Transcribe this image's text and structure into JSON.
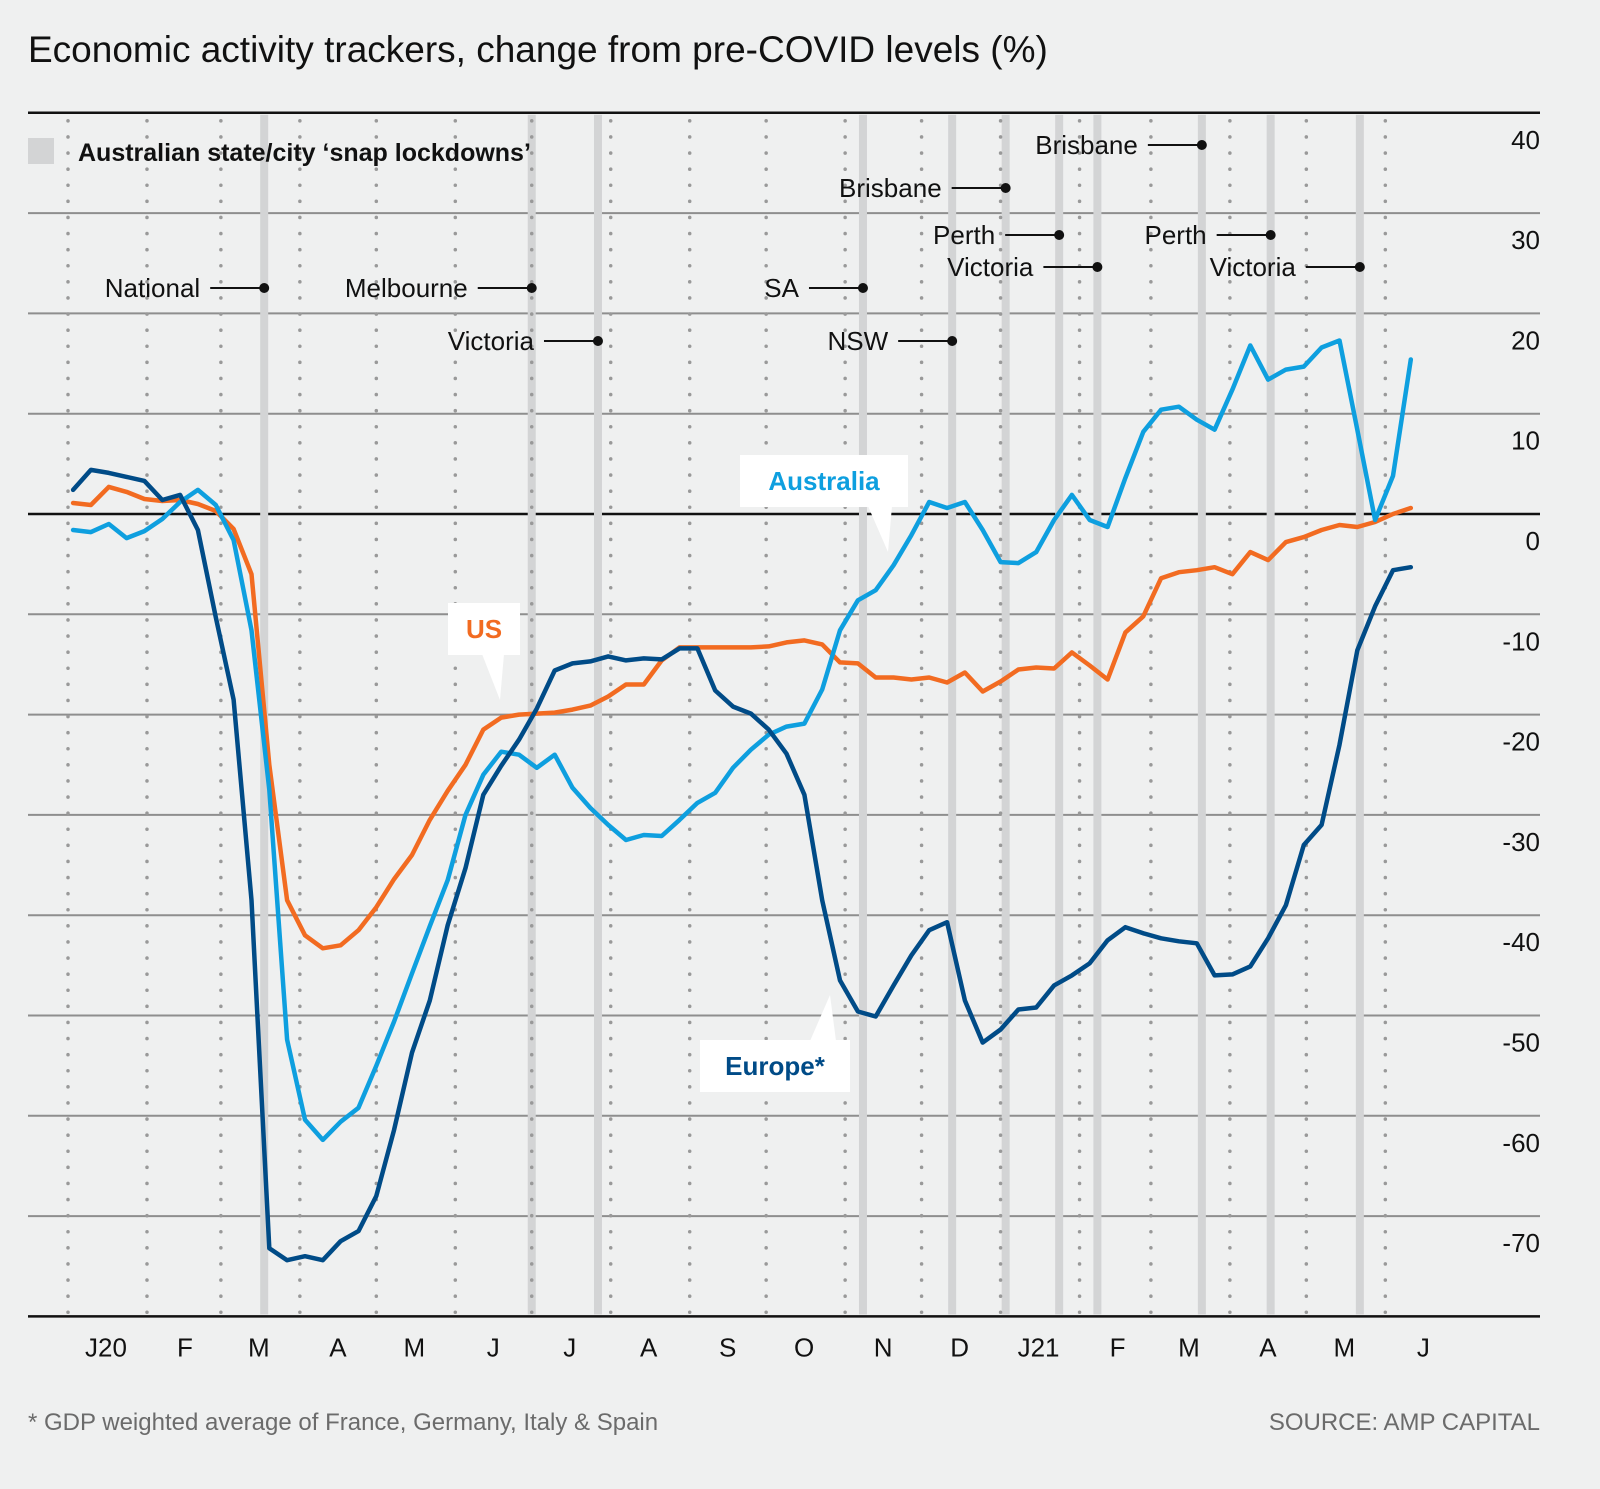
{
  "chart_data": {
    "type": "line",
    "title": "Economic activity trackers, change from pre-COVID levels (%)",
    "legend": {
      "swatch_color": "#d3d4d5",
      "label": "Australian state/city ‘snap lockdowns’",
      "placement": "top-left"
    },
    "ylim": [
      -80,
      40
    ],
    "y_ticks": [
      40,
      30,
      20,
      10,
      0,
      -10,
      -20,
      -30,
      -40,
      -50,
      -60,
      -70
    ],
    "y_axis_side": "right",
    "grid": true,
    "x_ticks": [
      {
        "label": "J20",
        "month": "2020-01"
      },
      {
        "label": "F",
        "month": "2020-02"
      },
      {
        "label": "M",
        "month": "2020-03"
      },
      {
        "label": "A",
        "month": "2020-04"
      },
      {
        "label": "M",
        "month": "2020-05"
      },
      {
        "label": "J",
        "month": "2020-06"
      },
      {
        "label": "J",
        "month": "2020-07"
      },
      {
        "label": "A",
        "month": "2020-08"
      },
      {
        "label": "S",
        "month": "2020-09"
      },
      {
        "label": "O",
        "month": "2020-10"
      },
      {
        "label": "N",
        "month": "2020-11"
      },
      {
        "label": "D",
        "month": "2020-12"
      },
      {
        "label": "J21",
        "month": "2021-01"
      },
      {
        "label": "F",
        "month": "2021-02"
      },
      {
        "label": "M",
        "month": "2021-03"
      },
      {
        "label": "A",
        "month": "2021-04"
      },
      {
        "label": "M",
        "month": "2021-05"
      },
      {
        "label": "J",
        "month": "2021-06"
      }
    ],
    "x": [
      "2020-01-03",
      "2020-01-10",
      "2020-01-17",
      "2020-01-24",
      "2020-01-31",
      "2020-02-07",
      "2020-02-14",
      "2020-02-21",
      "2020-02-28",
      "2020-03-06",
      "2020-03-13",
      "2020-03-20",
      "2020-03-27",
      "2020-04-03",
      "2020-04-10",
      "2020-04-17",
      "2020-04-24",
      "2020-05-01",
      "2020-05-08",
      "2020-05-15",
      "2020-05-22",
      "2020-05-29",
      "2020-06-05",
      "2020-06-12",
      "2020-06-19",
      "2020-06-26",
      "2020-07-03",
      "2020-07-10",
      "2020-07-17",
      "2020-07-24",
      "2020-07-31",
      "2020-08-07",
      "2020-08-14",
      "2020-08-21",
      "2020-08-28",
      "2020-09-04",
      "2020-09-11",
      "2020-09-18",
      "2020-09-25",
      "2020-10-02",
      "2020-10-09",
      "2020-10-16",
      "2020-10-23",
      "2020-10-30",
      "2020-11-06",
      "2020-11-13",
      "2020-11-20",
      "2020-11-27",
      "2020-12-04",
      "2020-12-11",
      "2020-12-18",
      "2020-12-25",
      "2021-01-01",
      "2021-01-08",
      "2021-01-15",
      "2021-01-22",
      "2021-01-29",
      "2021-02-05",
      "2021-02-12",
      "2021-02-19",
      "2021-02-26",
      "2021-03-05",
      "2021-03-12",
      "2021-03-19",
      "2021-03-26",
      "2021-04-02",
      "2021-04-09",
      "2021-04-16",
      "2021-04-23",
      "2021-04-30",
      "2021-05-07",
      "2021-05-14",
      "2021-05-21",
      "2021-05-28",
      "2021-06-04",
      "2021-06-11"
    ],
    "series": [
      {
        "name": "US",
        "color": "#f26b21",
        "values": [
          1.1,
          0.9,
          2.7,
          2.2,
          1.5,
          1.3,
          1.4,
          1.0,
          0.3,
          -1.5,
          -6,
          -25,
          -38.5,
          -42,
          -43.3,
          -43,
          -41.5,
          -39.2,
          -36.4,
          -34,
          -30.5,
          -27.6,
          -25,
          -21.5,
          -20.3,
          -20,
          -19.9,
          -19.8,
          -19.5,
          -19.1,
          -18.2,
          -17,
          -17,
          -14.6,
          -13.3,
          -13.3,
          -13.3,
          -13.3,
          -13.3,
          -13.2,
          -12.8,
          -12.6,
          -13,
          -14.8,
          -14.9,
          -16.3,
          -16.3,
          -16.5,
          -16.3,
          -16.8,
          -15.8,
          -17.7,
          -16.7,
          -15.5,
          -15.3,
          -15.4,
          -13.8,
          -15.1,
          -16.5,
          -11.8,
          -10.2,
          -6.4,
          -5.8,
          -5.6,
          -5.3,
          -6,
          -3.8,
          -4.6,
          -2.8,
          -2.3,
          -1.6,
          -1.1,
          -1.3,
          -0.8,
          0,
          0.6
        ]
      },
      {
        "name": "Australia",
        "color": "#0e9fdf",
        "values": [
          -1.6,
          -1.8,
          -1.0,
          -2.4,
          -1.7,
          -0.5,
          1.2,
          2.4,
          0.9,
          -2.6,
          -11.6,
          -27.5,
          -52.4,
          -60.4,
          -62.4,
          -60.6,
          -59.2,
          -55,
          -50.6,
          -45.8,
          -41.1,
          -36.5,
          -30,
          -26,
          -23.7,
          -24,
          -25.3,
          -24,
          -27.3,
          -29.3,
          -31,
          -32.5,
          -32,
          -32.1,
          -30.5,
          -28.8,
          -27.8,
          -25.3,
          -23.5,
          -22,
          -21.2,
          -20.9,
          -17.5,
          -11.6,
          -8.6,
          -7.6,
          -5.1,
          -2.1,
          1.2,
          0.6,
          1.2,
          -1.6,
          -4.8,
          -4.9,
          -3.8,
          -0.6,
          1.9,
          -0.6,
          -1.3,
          3.6,
          8.2,
          10.4,
          10.7,
          9.4,
          8.4,
          12.4,
          16.8,
          13.4,
          14.4,
          14.7,
          16.6,
          17.3,
          8.4,
          -0.6,
          3.8,
          15.4
        ]
      },
      {
        "name": "Europe*",
        "color": "#004b87",
        "values": [
          2.4,
          4.4,
          4.1,
          3.7,
          3.3,
          1.4,
          1.9,
          -1.6,
          -10.3,
          -18.5,
          -38.5,
          -73.2,
          -74.4,
          -74,
          -74.4,
          -72.5,
          -71.5,
          -68,
          -61.4,
          -53.7,
          -48.5,
          -41,
          -35.3,
          -28,
          -25.1,
          -22.5,
          -19.4,
          -15.6,
          -14.9,
          -14.7,
          -14.2,
          -14.6,
          -14.4,
          -14.5,
          -13.4,
          -13.4,
          -17.6,
          -19.2,
          -19.9,
          -21.5,
          -23.9,
          -28,
          -38.5,
          -46.5,
          -49.6,
          -50.1,
          -47,
          -44,
          -41.5,
          -40.7,
          -48.5,
          -52.7,
          -51.4,
          -49.4,
          -49.2,
          -47,
          -46,
          -44.8,
          -42.5,
          -41.2,
          -41.8,
          -42.3,
          -42.6,
          -42.8,
          -46,
          -45.9,
          -45.1,
          -42.3,
          -39,
          -33,
          -31,
          -23,
          -13.6,
          -9.2,
          -5.6,
          -5.3
        ]
      }
    ],
    "lockdowns": [
      {
        "date": "2020-03-18",
        "label": "National"
      },
      {
        "date": "2020-07-01",
        "label": "Melbourne"
      },
      {
        "date": "2020-07-27",
        "label": "Victoria"
      },
      {
        "date": "2020-11-08",
        "label": "SA"
      },
      {
        "date": "2020-12-13",
        "label": "NSW"
      },
      {
        "date": "2021-01-03",
        "label": "Brisbane"
      },
      {
        "date": "2021-01-24",
        "label": "Perth"
      },
      {
        "date": "2021-02-08",
        "label": "Victoria"
      },
      {
        "date": "2021-03-21",
        "label": "Brisbane"
      },
      {
        "date": "2021-04-17",
        "label": "Perth"
      },
      {
        "date": "2021-05-22",
        "label": "Victoria"
      }
    ],
    "footnote": "* GDP weighted average of France, Germany, Italy & Spain",
    "source": "SOURCE: AMP CAPITAL"
  }
}
